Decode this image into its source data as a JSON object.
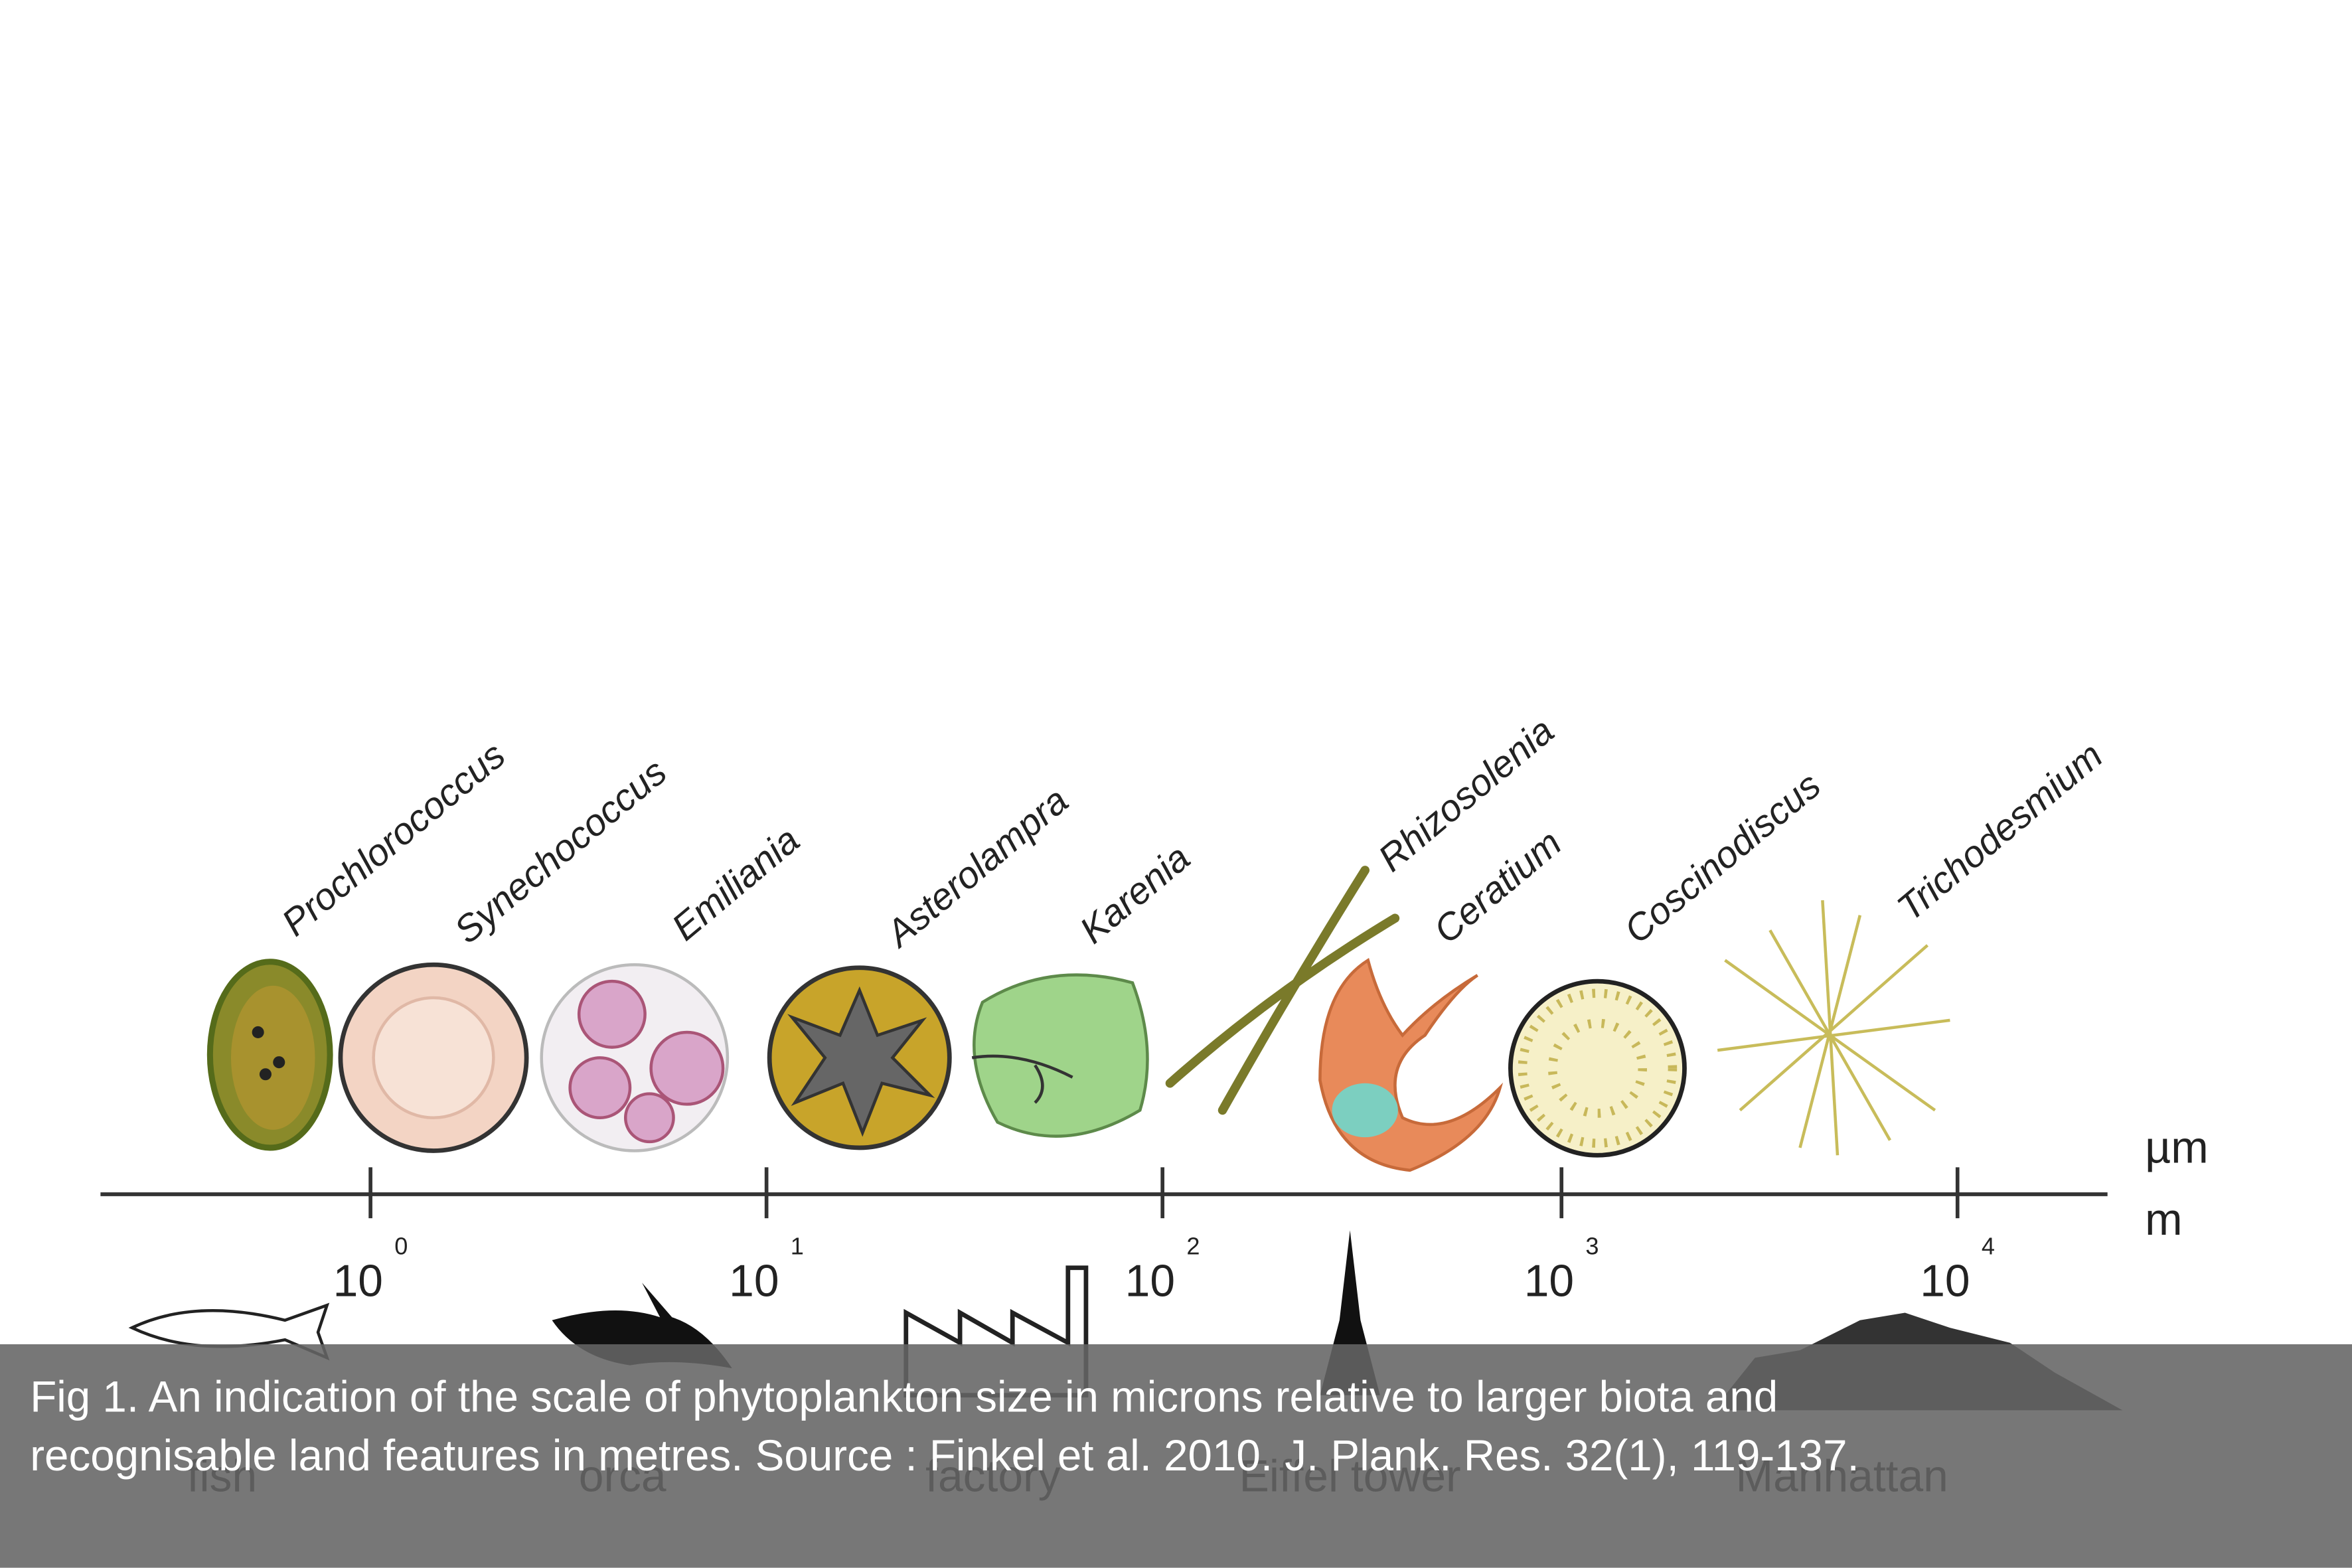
{
  "figure": {
    "organisms": [
      "Prochlorococcus",
      "Synechococcus",
      "Emiliania",
      "Asterolampra",
      "Karenia",
      "Rhizosolenia",
      "Ceratium",
      "Coscinodiscus",
      "Trichodesmium"
    ],
    "units": {
      "upper": "µm",
      "lower": "m"
    },
    "ticks": [
      {
        "base": "10",
        "exp": "0"
      },
      {
        "base": "10",
        "exp": "1"
      },
      {
        "base": "10",
        "exp": "2"
      },
      {
        "base": "10",
        "exp": "3"
      },
      {
        "base": "10",
        "exp": "4"
      }
    ],
    "references": [
      "fish",
      "orca",
      "factory",
      "Eiffel tower",
      "Manhattan"
    ]
  },
  "caption": {
    "lines": [
      "Fig 1. An indication of the scale of phytoplankton size in microns relative to larger biota and",
      "recognisable land features in metres. Source : Finkel et al. 2010. J. Plank. Res. 32(1), 119-137."
    ]
  }
}
